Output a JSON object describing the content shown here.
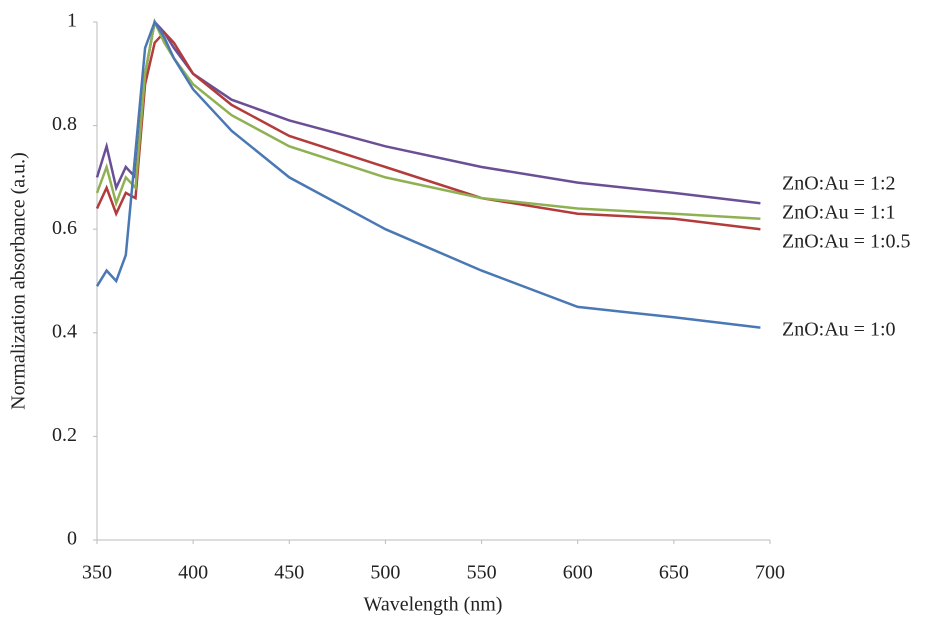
{
  "chart_data": {
    "type": "line",
    "xlabel": "Wavelength  (nm)",
    "ylabel": "Normalization  absorbance  (a.u.)",
    "x": [
      350,
      355,
      360,
      365,
      370,
      375,
      380,
      385,
      390,
      400,
      420,
      450,
      500,
      550,
      600,
      650,
      695
    ],
    "series": [
      {
        "name": "ZnO:Au  = 1:2",
        "color": "#6a4f96",
        "values": [
          0.7,
          0.76,
          0.68,
          0.72,
          0.7,
          0.9,
          1.0,
          0.98,
          0.95,
          0.9,
          0.85,
          0.81,
          0.76,
          0.72,
          0.69,
          0.67,
          0.65
        ]
      },
      {
        "name": "ZnO:Au  = 1:1",
        "color": "#b33b3b",
        "values": [
          0.64,
          0.68,
          0.63,
          0.67,
          0.66,
          0.88,
          0.96,
          0.98,
          0.96,
          0.9,
          0.84,
          0.78,
          0.72,
          0.66,
          0.63,
          0.62,
          0.6
        ]
      },
      {
        "name": "ZnO:Au  = 1:0.5",
        "color": "#8fb152",
        "values": [
          0.67,
          0.72,
          0.65,
          0.7,
          0.68,
          0.9,
          1.0,
          0.96,
          0.93,
          0.88,
          0.82,
          0.76,
          0.7,
          0.66,
          0.64,
          0.63,
          0.62
        ]
      },
      {
        "name": "ZnO:Au  = 1:0",
        "color": "#4a78b5",
        "values": [
          0.49,
          0.52,
          0.5,
          0.55,
          0.75,
          0.95,
          1.0,
          0.97,
          0.93,
          0.87,
          0.79,
          0.7,
          0.6,
          0.52,
          0.45,
          0.43,
          0.41
        ]
      }
    ],
    "xlim": [
      350,
      700
    ],
    "xticks": [
      350,
      400,
      450,
      500,
      550,
      600,
      650,
      700
    ],
    "ylim": [
      0,
      1
    ],
    "yticks": [
      0,
      0.2,
      0.4,
      0.6,
      0.8,
      1
    ],
    "grid": false
  }
}
